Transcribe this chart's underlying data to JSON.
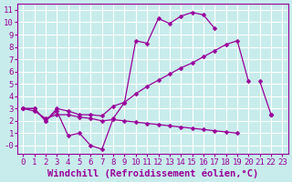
{
  "background_color": "#c8ecec",
  "grid_color": "#ffffff",
  "line_color": "#990099",
  "xlim": [
    -0.5,
    23.5
  ],
  "ylim": [
    -0.7,
    11.5
  ],
  "xticks": [
    0,
    1,
    2,
    3,
    4,
    5,
    6,
    7,
    8,
    9,
    10,
    11,
    12,
    13,
    14,
    15,
    16,
    17,
    18,
    19,
    20,
    21,
    22,
    23
  ],
  "yticks": [
    0,
    1,
    2,
    3,
    4,
    5,
    6,
    7,
    8,
    9,
    10,
    11
  ],
  "ytick_labels": [
    "-0",
    "1",
    "2",
    "3",
    "4",
    "5",
    "6",
    "7",
    "8",
    "9",
    "10",
    "11"
  ],
  "xlabel": "Windchill (Refroidissement éolien,°C)",
  "line1_x": [
    0,
    1,
    2,
    3,
    4,
    5,
    6,
    7,
    8,
    9,
    10,
    11,
    12,
    13,
    14,
    15,
    16,
    17,
    18,
    19,
    20,
    21,
    22,
    23
  ],
  "line1_y": [
    3.0,
    3.0,
    2.0,
    2.8,
    0.8,
    1.0,
    0.0,
    -0.3,
    2.2,
    3.5,
    8.5,
    8.3,
    10.3,
    9.9,
    10.5,
    10.8,
    10.6,
    9.5,
    null,
    null,
    null,
    5.2,
    2.5,
    null
  ],
  "line2_x": [
    0,
    1,
    2,
    3,
    4,
    5,
    6,
    7,
    8,
    9,
    10,
    11,
    12,
    13,
    14,
    15,
    16,
    17,
    18,
    19,
    20,
    21,
    22,
    23
  ],
  "line2_y": [
    3.0,
    3.0,
    2.0,
    3.0,
    2.8,
    2.5,
    2.5,
    2.4,
    3.2,
    3.5,
    4.2,
    4.8,
    5.3,
    5.8,
    6.3,
    6.7,
    7.2,
    7.7,
    8.2,
    8.5,
    5.2,
    null,
    2.5,
    null
  ],
  "line3_x": [
    0,
    1,
    2,
    3,
    4,
    5,
    6,
    7,
    8,
    9,
    10,
    11,
    12,
    13,
    14,
    15,
    16,
    17,
    18,
    19,
    20,
    21,
    22,
    23
  ],
  "line3_y": [
    3.0,
    2.8,
    2.2,
    2.5,
    2.5,
    2.3,
    2.2,
    2.0,
    2.1,
    2.0,
    1.9,
    1.8,
    1.7,
    1.6,
    1.5,
    1.4,
    1.3,
    1.2,
    1.1,
    1.0,
    null,
    null,
    2.5,
    null
  ],
  "tick_fontsize": 6.5,
  "label_fontsize": 7.5,
  "font_color": "#990099",
  "marker_size": 2.5,
  "line_width": 0.9
}
